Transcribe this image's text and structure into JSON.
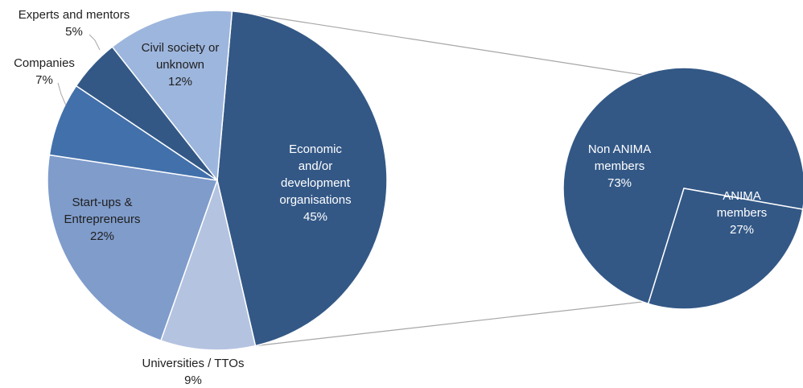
{
  "chart_data": {
    "type": "bar-of-pie",
    "title": "",
    "main_pie": [
      {
        "name": "Economic and/or development organisations",
        "label_lines": [
          "Economic",
          "and/or",
          "development",
          "organisations"
        ],
        "value": 45,
        "pct_label": "45%",
        "color": "#335886"
      },
      {
        "name": "Universities / TTOs",
        "label_lines": [
          "Universities / TTOs"
        ],
        "value": 9,
        "pct_label": "9%",
        "color": "#b4c3e0"
      },
      {
        "name": "Start-ups & Entrepreneurs",
        "label_lines": [
          "Start-ups &",
          "Entrepreneurs"
        ],
        "value": 22,
        "pct_label": "22%",
        "color": "#7f9ccb"
      },
      {
        "name": "Companies",
        "label_lines": [
          "Companies"
        ],
        "value": 7,
        "pct_label": "7%",
        "color": "#4270ab"
      },
      {
        "name": "Experts and mentors",
        "label_lines": [
          "Experts and mentors"
        ],
        "value": 5,
        "pct_label": "5%",
        "color": "#335886"
      },
      {
        "name": "Civil society or unknown",
        "label_lines": [
          "Civil society or",
          "unknown"
        ],
        "value": 12,
        "pct_label": "12%",
        "color": "#9db6dd"
      }
    ],
    "detail_pie": {
      "of": "Economic and/or development organisations",
      "slices": [
        {
          "name": "Non ANIMA members",
          "label_lines": [
            "Non ANIMA",
            "members"
          ],
          "value": 73,
          "pct_label": "73%",
          "color": "#335886"
        },
        {
          "name": "ANIMA members",
          "label_lines": [
            "ANIMA",
            "members"
          ],
          "value": 27,
          "pct_label": "27%",
          "color": "#335886"
        }
      ]
    },
    "legend": "none"
  }
}
